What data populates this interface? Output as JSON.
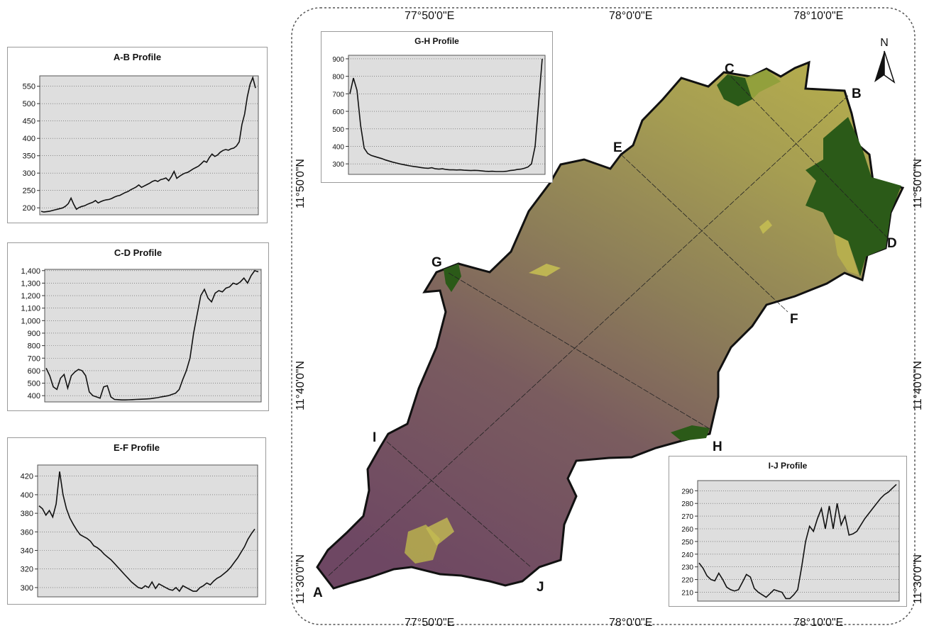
{
  "profiles": [
    {
      "id": "ab",
      "title": "A-B Profile",
      "ymin": 180,
      "ymax": 580,
      "ticks": [
        200,
        250,
        300,
        350,
        400,
        450,
        500,
        550
      ],
      "tick_labels": [
        "200",
        "250",
        "300",
        "350",
        "400",
        "450",
        "500",
        "550"
      ],
      "values": [
        190,
        188,
        189,
        190,
        192,
        194,
        196,
        198,
        200,
        205,
        212,
        228,
        210,
        196,
        201,
        204,
        206,
        210,
        213,
        216,
        221,
        214,
        218,
        221,
        223,
        224,
        227,
        231,
        234,
        236,
        240,
        244,
        247,
        252,
        256,
        260,
        266,
        259,
        263,
        267,
        271,
        276,
        279,
        276,
        281,
        283,
        286,
        278,
        290,
        305,
        285,
        291,
        296,
        300,
        302,
        307,
        312,
        316,
        320,
        327,
        335,
        331,
        345,
        355,
        348,
        352,
        360,
        365,
        368,
        366,
        370,
        372,
        378,
        390,
        440,
        470,
        520,
        556,
        575,
        545
      ]
    },
    {
      "id": "cd",
      "title": "C-D Profile",
      "ymin": 350,
      "ymax": 1410,
      "ticks": [
        400,
        500,
        600,
        700,
        800,
        900,
        1000,
        1100,
        1200,
        1300,
        1400
      ],
      "tick_labels": [
        "400",
        "500",
        "600",
        "700",
        "800",
        "900",
        "1,000",
        "1,100",
        "1,200",
        "1,300",
        "1,400"
      ],
      "values": [
        620,
        560,
        470,
        450,
        540,
        570,
        460,
        560,
        590,
        610,
        600,
        560,
        430,
        400,
        390,
        380,
        470,
        480,
        390,
        370,
        368,
        366,
        366,
        367,
        368,
        370,
        371,
        372,
        374,
        376,
        380,
        384,
        390,
        395,
        400,
        410,
        420,
        450,
        530,
        600,
        700,
        900,
        1050,
        1200,
        1250,
        1180,
        1150,
        1220,
        1240,
        1230,
        1260,
        1270,
        1300,
        1290,
        1310,
        1340,
        1300,
        1360,
        1400,
        1390
      ]
    },
    {
      "id": "ef",
      "title": "E-F Profile",
      "ymin": 290,
      "ymax": 432,
      "ticks": [
        300,
        320,
        340,
        360,
        380,
        400,
        420
      ],
      "tick_labels": [
        "300",
        "320",
        "340",
        "360",
        "380",
        "400",
        "420"
      ],
      "values": [
        388,
        385,
        378,
        383,
        376,
        390,
        425,
        400,
        385,
        375,
        368,
        362,
        357,
        355,
        353,
        350,
        345,
        343,
        340,
        336,
        333,
        330,
        326,
        322,
        318,
        314,
        310,
        306,
        303,
        300,
        299,
        302,
        300,
        306,
        299,
        304,
        302,
        300,
        298,
        297,
        300,
        296,
        302,
        300,
        298,
        296,
        296,
        300,
        302,
        305,
        303,
        307,
        310,
        312,
        315,
        318,
        322,
        327,
        332,
        338,
        344,
        352,
        358,
        363
      ]
    },
    {
      "id": "gh",
      "title": "G-H Profile",
      "ymin": 240,
      "ymax": 920,
      "ticks": [
        300,
        400,
        500,
        600,
        700,
        800,
        900
      ],
      "tick_labels": [
        "300",
        "400",
        "500",
        "600",
        "700",
        "800",
        "900"
      ],
      "values": [
        700,
        790,
        720,
        520,
        390,
        360,
        348,
        342,
        336,
        330,
        322,
        316,
        310,
        305,
        300,
        296,
        292,
        288,
        285,
        282,
        279,
        276,
        275,
        278,
        272,
        270,
        272,
        268,
        266,
        266,
        265,
        266,
        264,
        263,
        262,
        263,
        262,
        260,
        258,
        257,
        258,
        256,
        256,
        256,
        258,
        262,
        264,
        268,
        270,
        275,
        282,
        300,
        400,
        650,
        900
      ]
    },
    {
      "id": "ij",
      "title": "I-J Profile",
      "ymin": 203,
      "ymax": 298,
      "ticks": [
        210,
        220,
        230,
        240,
        250,
        260,
        270,
        280,
        290
      ],
      "tick_labels": [
        "210",
        "220",
        "230",
        "240",
        "250",
        "260",
        "270",
        "280",
        "290"
      ],
      "values": [
        233,
        229,
        223,
        220,
        219,
        225,
        220,
        214,
        212,
        211,
        212,
        218,
        224,
        222,
        213,
        210,
        208,
        206,
        209,
        212,
        211,
        210,
        205,
        205,
        208,
        212,
        230,
        250,
        262,
        258,
        268,
        276,
        260,
        278,
        260,
        280,
        263,
        270,
        255,
        256,
        258,
        263,
        268,
        272,
        276,
        280,
        284,
        287,
        289,
        292,
        295
      ]
    }
  ],
  "map": {
    "top_longitudes": [
      "77°50'0\"E",
      "78°0'0\"E",
      "78°10'0\"E"
    ],
    "bottom_longitudes": [
      "77°50'0\"E",
      "78°0'0\"E",
      "78°10'0\"E"
    ],
    "left_latitudes": [
      "11°50'0\"N",
      "11°40'0\"N",
      "11°30'0\"N"
    ],
    "right_latitudes": [
      "11°50'0\"N",
      "11°40'0\"N",
      "11°30'0\"N"
    ],
    "point_labels": {
      "A": "A",
      "B": "B",
      "C": "C",
      "D": "D",
      "E": "E",
      "F": "F",
      "G": "G",
      "H": "H",
      "I": "I",
      "J": "J"
    },
    "north_label": "N"
  },
  "colors": {
    "plot_bg": "#dedede",
    "dem_low": "#6e4763",
    "dem_mid": "#8c7d58",
    "dem_high": "#b8b04e",
    "dem_peak": "#2b5a18"
  }
}
